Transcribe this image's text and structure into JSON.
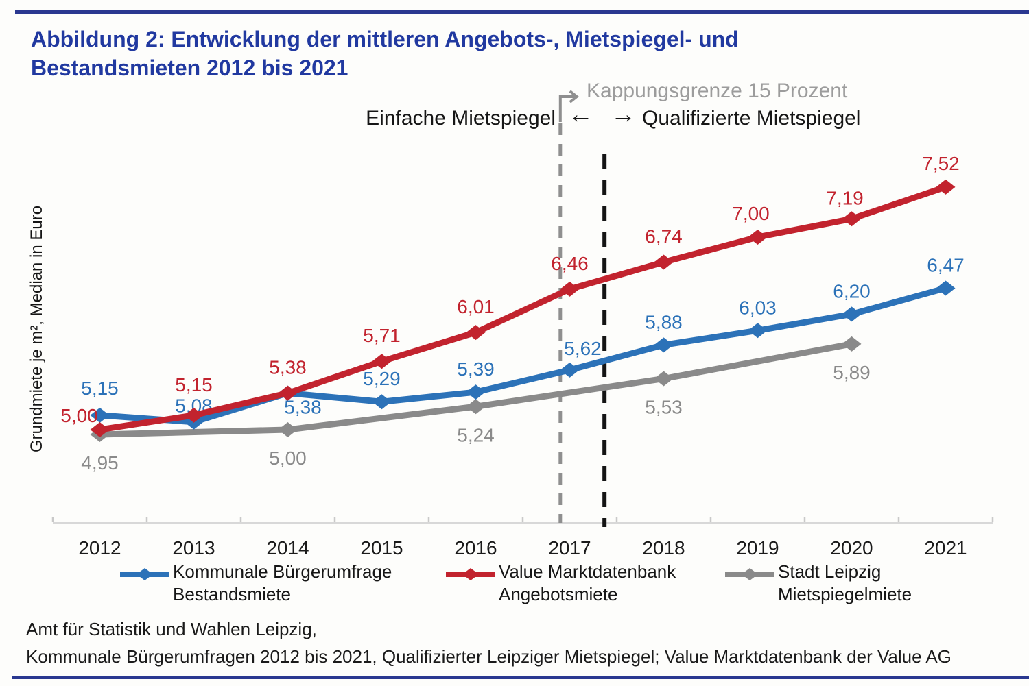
{
  "page": {
    "title_lines": [
      "Abbildung 2: Entwicklung der mittleren Angebots-, Mietspiegel- und",
      "Bestandsmieten 2012 bis 2021"
    ],
    "source_lines": [
      "Amt für Statistik und Wahlen Leipzig,",
      "Kommunale Bürgerumfragen 2012 bis 2021, Qualifizierter Leipziger Mietspiegel; Value Marktdatenbank der Value AG"
    ]
  },
  "colors": {
    "title": "#2139a0",
    "rule": "#2a3890",
    "axis": "#d8d8d8",
    "tick": "#c9c9c9",
    "black_text": "#1a1a1a",
    "blue_series": "#2c72b8",
    "red_series": "#c2232e",
    "gray_series": "#8a8a8a",
    "gray_dashed": "#8f8f8f",
    "black_dashed": "#141414",
    "gray_annotation": "#9c9c9c"
  },
  "annotations": {
    "kappungsgrenze": "Kappungsgrenze 15 Prozent",
    "left_label": "Einfache Mietspiegel",
    "right_label": "Qualifizierte Mietspiegel",
    "arrow_left": "←",
    "arrow_right": "→"
  },
  "chart_data": {
    "type": "line",
    "title": "",
    "xlabel": "",
    "ylabel": "Grundmiete je m², Median in Euro",
    "ylim": [
      4.0,
      8.0
    ],
    "grid": false,
    "legend_position": "bottom",
    "x_ticks": [
      "2012",
      "2013",
      "2014",
      "2015",
      "2016",
      "2017",
      "2018",
      "2019",
      "2020",
      "2021"
    ],
    "series": [
      {
        "name": "Kommunale Bürgerumfrage Bestandsmiete",
        "name_lines": [
          "Kommunale Bürgerumfrage",
          "Bestandsmiete"
        ],
        "color": "#2c72b8",
        "years": [
          2012,
          2013,
          2014,
          2015,
          2016,
          2017,
          2018,
          2019,
          2020,
          2021
        ],
        "values": [
          5.15,
          5.08,
          5.38,
          5.29,
          5.39,
          5.62,
          5.88,
          6.03,
          6.2,
          6.47
        ],
        "labels": [
          "5,15",
          "5,08",
          "5,38",
          "5,29",
          "5,39",
          "5,62",
          "5,88",
          "6,03",
          "6,20",
          "6,47"
        ]
      },
      {
        "name": "Value Marktdatenbank Angebotsmiete",
        "name_lines": [
          "Value Marktdatenbank",
          "Angebotsmiete"
        ],
        "color": "#c2232e",
        "years": [
          2012,
          2013,
          2014,
          2015,
          2016,
          2017,
          2018,
          2019,
          2020,
          2021
        ],
        "values": [
          5.0,
          5.15,
          5.38,
          5.71,
          6.01,
          6.46,
          6.74,
          7.0,
          7.19,
          7.52
        ],
        "labels": [
          "5,00",
          "5,15",
          "5,38",
          "5,71",
          "6,01",
          "6,46",
          "6,74",
          "7,00",
          "7,19",
          "7,52"
        ]
      },
      {
        "name": "Stadt Leipzig Mietspiegelmiete",
        "name_lines": [
          "Stadt Leipzig",
          "Mietspiegelmiete"
        ],
        "color": "#8a8a8a",
        "years": [
          2012,
          2014,
          2016,
          2018,
          2020
        ],
        "values": [
          4.95,
          5.0,
          5.24,
          5.53,
          5.89
        ],
        "labels": [
          "4,95",
          "5,00",
          "5,24",
          "5,53",
          "5,89"
        ]
      }
    ],
    "vlines": [
      {
        "x_year": 2016.9,
        "style": "dashed",
        "color": "#8f8f8f",
        "elbow_top": true,
        "label": "Kappungsgrenze 15 Prozent"
      },
      {
        "x_year": 2017.37,
        "style": "dashed",
        "color": "#141414",
        "elbow_top": false,
        "label": ""
      }
    ]
  }
}
